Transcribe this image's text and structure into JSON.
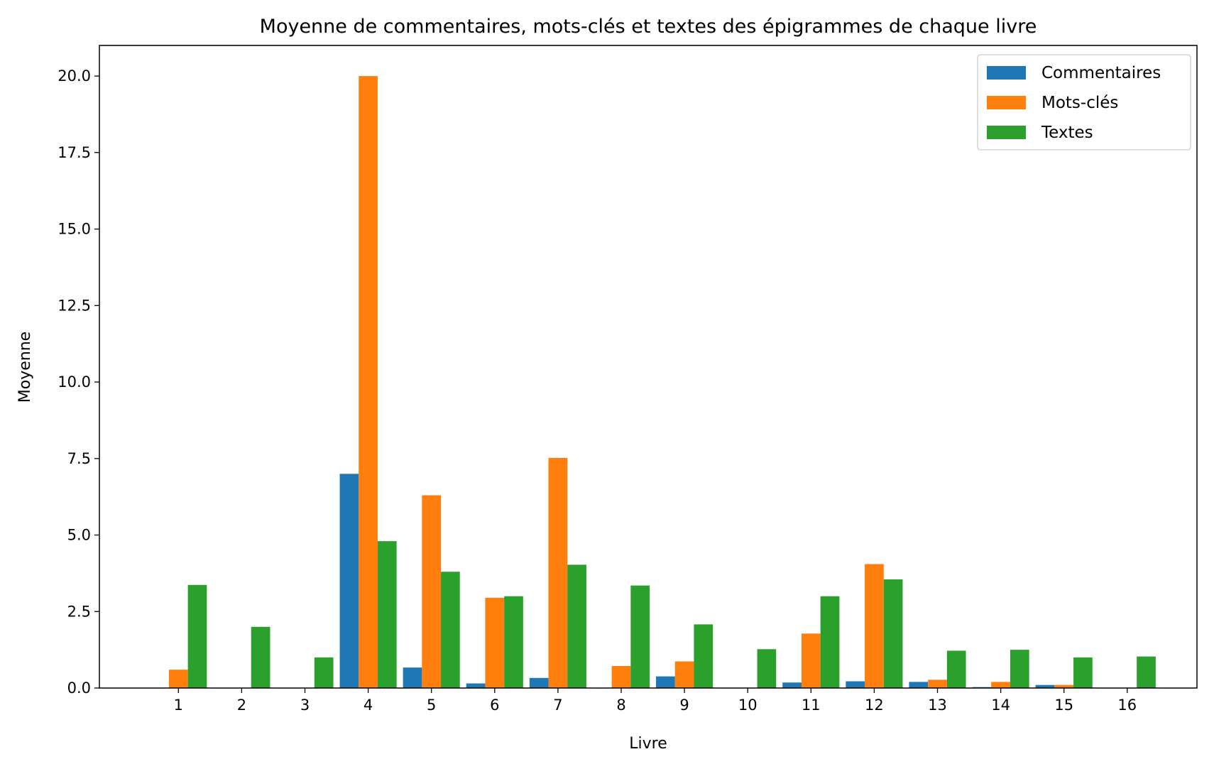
{
  "chart_data": {
    "type": "bar",
    "title": "Moyenne de commentaires, mots-clés et textes des épigrammes de chaque livre",
    "xlabel": "Livre",
    "ylabel": "Moyenne",
    "categories": [
      "1",
      "2",
      "3",
      "4",
      "5",
      "6",
      "7",
      "8",
      "9",
      "10",
      "11",
      "12",
      "13",
      "14",
      "15",
      "16"
    ],
    "ylim": [
      0,
      21
    ],
    "yticks": [
      0.0,
      2.5,
      5.0,
      7.5,
      10.0,
      12.5,
      15.0,
      17.5,
      20.0
    ],
    "ytick_labels": [
      "0.0",
      "2.5",
      "5.0",
      "7.5",
      "10.0",
      "12.5",
      "15.0",
      "17.5",
      "20.0"
    ],
    "grid": false,
    "legend_position": "top-right",
    "series": [
      {
        "name": "Commentaires",
        "color": "#1f77b4",
        "values": [
          0,
          0,
          0,
          7.0,
          0.67,
          0.15,
          0.33,
          0,
          0.38,
          0,
          0.18,
          0.22,
          0.2,
          0.03,
          0.1,
          0
        ]
      },
      {
        "name": "Mots-clés",
        "color": "#ff7f0e",
        "values": [
          0.6,
          0,
          0,
          20.0,
          6.3,
          2.95,
          7.52,
          0.72,
          0.87,
          0,
          1.78,
          4.05,
          0.27,
          0.2,
          0.1,
          0
        ]
      },
      {
        "name": "Textes",
        "color": "#2ca02c",
        "values": [
          3.37,
          2.0,
          1.0,
          4.8,
          3.8,
          3.0,
          4.03,
          3.35,
          2.08,
          1.27,
          3.0,
          3.55,
          1.22,
          1.25,
          1.0,
          1.03
        ]
      }
    ]
  }
}
